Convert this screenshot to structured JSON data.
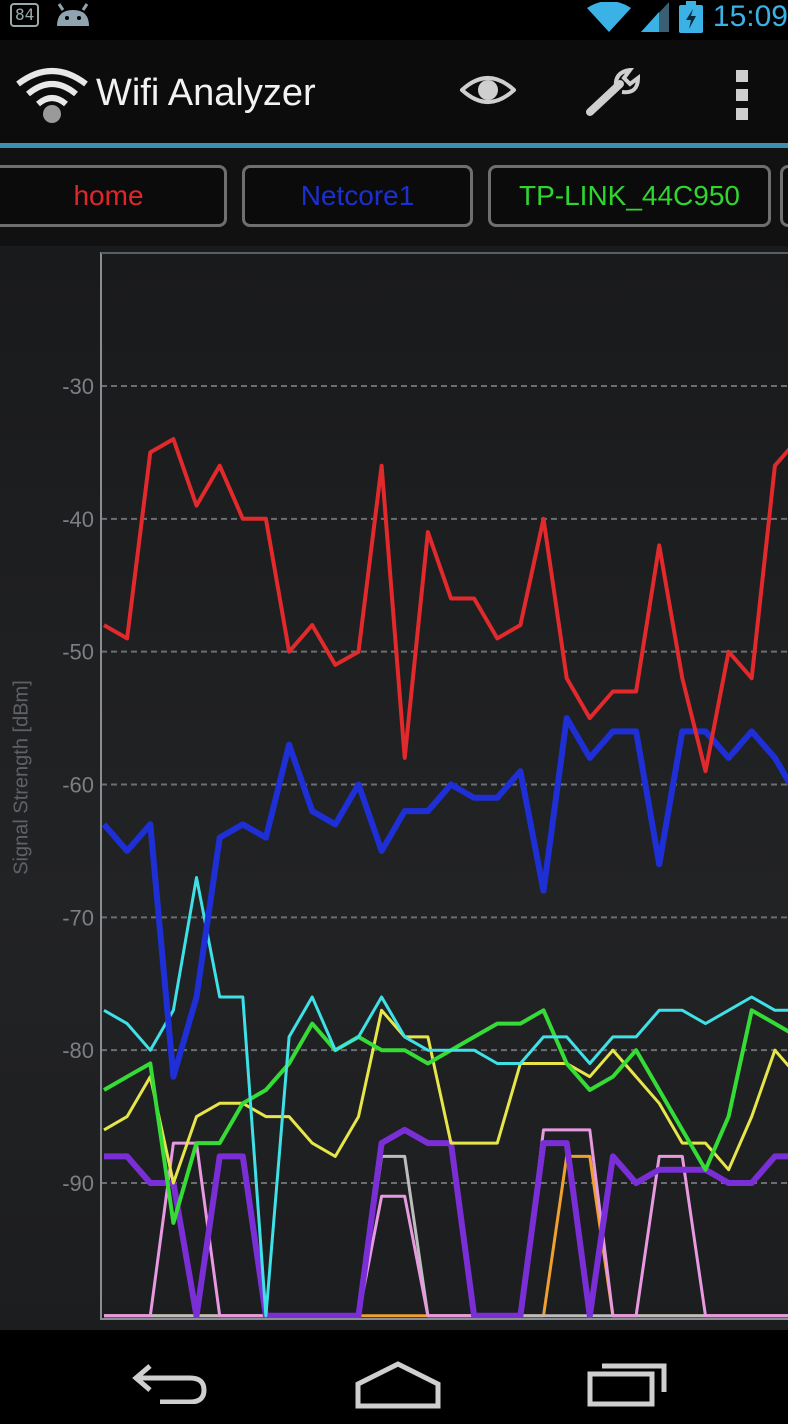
{
  "status_bar": {
    "notification_badge": "84",
    "time": "15:09"
  },
  "action_bar": {
    "title": "Wifi Analyzer",
    "icons": [
      "wifi-app-icon",
      "eye-icon",
      "wrench-icon",
      "overflow-menu-icon"
    ]
  },
  "ssid_tabs": [
    {
      "label": "home",
      "color": "#e0262a"
    },
    {
      "label": "Netcore1",
      "color": "#1c2fd0"
    },
    {
      "label": "TP-LINK_44C950",
      "color": "#2fd62f"
    }
  ],
  "nav_bar": {
    "icons": [
      "back-icon",
      "home-icon",
      "recent-apps-icon"
    ]
  },
  "chart_data": {
    "type": "line",
    "title": "",
    "xlabel": "",
    "ylabel": "Signal Strength [dBm]",
    "ylim": [
      -100,
      -20
    ],
    "yticks": [
      -30,
      -40,
      -50,
      -60,
      -70,
      -80,
      -90
    ],
    "ytick_labels": [
      "-30",
      "-40",
      "-50",
      "-60",
      "-70",
      "-80",
      "-90"
    ],
    "grid": "horizontal dashed",
    "legend": "tabs above chart",
    "x": [
      0,
      1,
      2,
      3,
      4,
      5,
      6,
      7,
      8,
      9,
      10,
      11,
      12,
      13,
      14,
      15,
      16,
      17,
      18,
      19,
      20,
      21,
      22,
      23,
      24,
      25,
      26,
      27,
      28,
      29,
      30
    ],
    "series": [
      {
        "name": "home",
        "color": "#e22a2d",
        "width": 4,
        "values": [
          -48,
          -49,
          -35,
          -34,
          -39,
          -36,
          -40,
          -40,
          -50,
          -48,
          -51,
          -50,
          -36,
          -58,
          -41,
          -46,
          -46,
          -49,
          -48,
          -40,
          -52,
          -55,
          -53,
          -53,
          -42,
          -52,
          -59,
          -50,
          -52,
          -36,
          -34
        ]
      },
      {
        "name": "Netcore1",
        "color": "#1f2fd6",
        "width": 6,
        "values": [
          -63,
          -65,
          -63,
          -82,
          -76,
          -64,
          -63,
          -64,
          -57,
          -62,
          -63,
          -60,
          -65,
          -62,
          -62,
          -60,
          -61,
          -61,
          -59,
          -68,
          -55,
          -58,
          -56,
          -56,
          -66,
          -56,
          -56,
          -58,
          -56,
          -58,
          -61
        ]
      },
      {
        "name": "",
        "color": "#3fe0e6",
        "width": 3,
        "values": [
          -77,
          -78,
          -80,
          -77,
          -67,
          -76,
          -76,
          -100,
          -79,
          -76,
          -80,
          -79,
          -76,
          -79,
          -80,
          -80,
          -80,
          -81,
          -81,
          -79,
          -79,
          -81,
          -79,
          -79,
          -77,
          -77,
          -78,
          -77,
          -76,
          -77,
          -77
        ]
      },
      {
        "name": "TP-LINK_44C950",
        "color": "#35dc35",
        "width": 4,
        "values": [
          -83,
          -82,
          -81,
          -93,
          -87,
          -87,
          -84,
          -83,
          -81,
          -78,
          -80,
          -79,
          -80,
          -80,
          -81,
          -80,
          -79,
          -78,
          -78,
          -77,
          -81,
          -83,
          -82,
          -80,
          -83,
          -86,
          -89,
          -85,
          -77,
          -78,
          -79
        ]
      },
      {
        "name": "",
        "color": "#e6e64a",
        "width": 3,
        "values": [
          -86,
          -85,
          -82,
          -90,
          -85,
          -84,
          -84,
          -85,
          -85,
          -87,
          -88,
          -85,
          -77,
          -79,
          -79,
          -87,
          -87,
          -87,
          -81,
          -81,
          -81,
          -82,
          -80,
          -82,
          -84,
          -87,
          -87,
          -89,
          -85,
          -80,
          -82
        ]
      },
      {
        "name": "",
        "color": "#7a2fd6",
        "width": 6,
        "values": [
          -88,
          -88,
          -90,
          -90,
          -100,
          -88,
          -88,
          -100,
          -100,
          -100,
          -100,
          -100,
          -87,
          -86,
          -87,
          -87,
          -100,
          -100,
          -100,
          -87,
          -87,
          -100,
          -88,
          -90,
          -89,
          -89,
          -89,
          -90,
          -90,
          -88,
          -88
        ]
      },
      {
        "name": "",
        "color": "#e89ae0",
        "width": 3,
        "values": [
          -100,
          -100,
          -100,
          -87,
          -87,
          -100,
          -100,
          -100,
          -100,
          -100,
          -100,
          -100,
          -91,
          -91,
          -100,
          -100,
          -100,
          -100,
          -100,
          -86,
          -86,
          -86,
          -100,
          -100,
          -88,
          -88,
          -100,
          -100,
          -100,
          -100,
          -100
        ]
      },
      {
        "name": "",
        "color": "#bdbdbd",
        "width": 3,
        "values": [
          -100,
          -100,
          -100,
          -100,
          -100,
          -100,
          -100,
          -100,
          -100,
          -100,
          -100,
          -100,
          -88,
          -88,
          -100,
          -100,
          -100,
          -100,
          -100,
          -100,
          -100,
          -100,
          -100,
          -100,
          -100,
          -100,
          -100,
          -100,
          -100,
          -100,
          -100
        ]
      },
      {
        "name": "",
        "color": "#f0a030",
        "width": 3,
        "values": [
          -100,
          -100,
          -100,
          -100,
          -100,
          -100,
          -100,
          -100,
          -100,
          -100,
          -100,
          -100,
          -100,
          -100,
          -100,
          -100,
          -100,
          -100,
          -100,
          -100,
          -88,
          -88,
          -100,
          -100,
          -100,
          -100,
          -100,
          -100,
          -100,
          -100,
          -100
        ]
      }
    ]
  }
}
